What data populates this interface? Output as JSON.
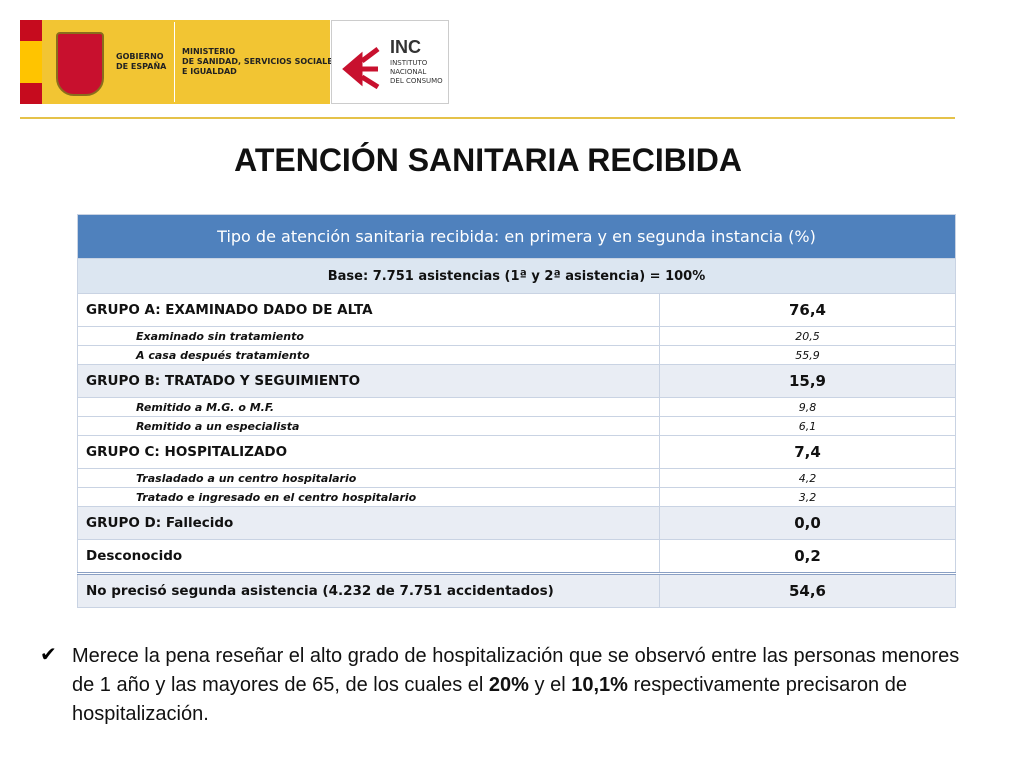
{
  "header": {
    "government": [
      "GOBIERNO",
      "DE ESPAÑA"
    ],
    "ministry": [
      "MINISTERIO",
      "DE SANIDAD, SERVICIOS SOCIALES",
      "E IGUALDAD"
    ],
    "agency": {
      "acronym": "INC",
      "name": [
        "INSTITUTO",
        "NACIONAL",
        "DEL CONSUMO"
      ]
    }
  },
  "title": "ATENCIÓN SANITARIA RECIBIDA",
  "table": {
    "caption": "Tipo de atención sanitaria recibida: en primera y en segunda instancia (%)",
    "base": "Base: 7.751 asistencias (1ª y 2ª asistencia) = 100%",
    "groups": [
      {
        "label": "GRUPO A: EXAMINADO DADO DE ALTA",
        "value": "76,4",
        "items": [
          {
            "label": "Examinado sin tratamiento",
            "value": "20,5"
          },
          {
            "label": "A casa después tratamiento",
            "value": "55,9"
          }
        ]
      },
      {
        "label": "GRUPO B: TRATADO Y SEGUIMIENTO",
        "value": "15,9",
        "items": [
          {
            "label": "Remitido a M.G. o M.F.",
            "value": "9,8"
          },
          {
            "label": "Remitido a un especialista",
            "value": "6,1"
          }
        ]
      },
      {
        "label": "GRUPO C: HOSPITALIZADO",
        "value": "7,4",
        "items": [
          {
            "label": "Trasladado a un centro hospitalario",
            "value": "4,2"
          },
          {
            "label": "Tratado e ingresado en el centro hospitalario",
            "value": "3,2"
          }
        ]
      },
      {
        "label": "GRUPO D: Fallecido",
        "value": "0,0",
        "items": []
      },
      {
        "label": "Desconocido",
        "value": "0,2",
        "items": []
      }
    ],
    "footer": {
      "label": "No precisó segunda asistencia (4.232 de 7.751 accidentados)",
      "value": "54,6"
    }
  },
  "note": [
    {
      "text": "Merece la pena reseñar el alto grado de hospitalización que se observó entre las personas menores de 1 año y las mayores de 65, de los cuales el ",
      "bold": false
    },
    {
      "text": "20%",
      "bold": true
    },
    {
      "text": " y el ",
      "bold": false
    },
    {
      "text": "10,1%",
      "bold": true
    },
    {
      "text": " respectivamente precisaron de hospitalización.",
      "bold": false
    }
  ]
}
